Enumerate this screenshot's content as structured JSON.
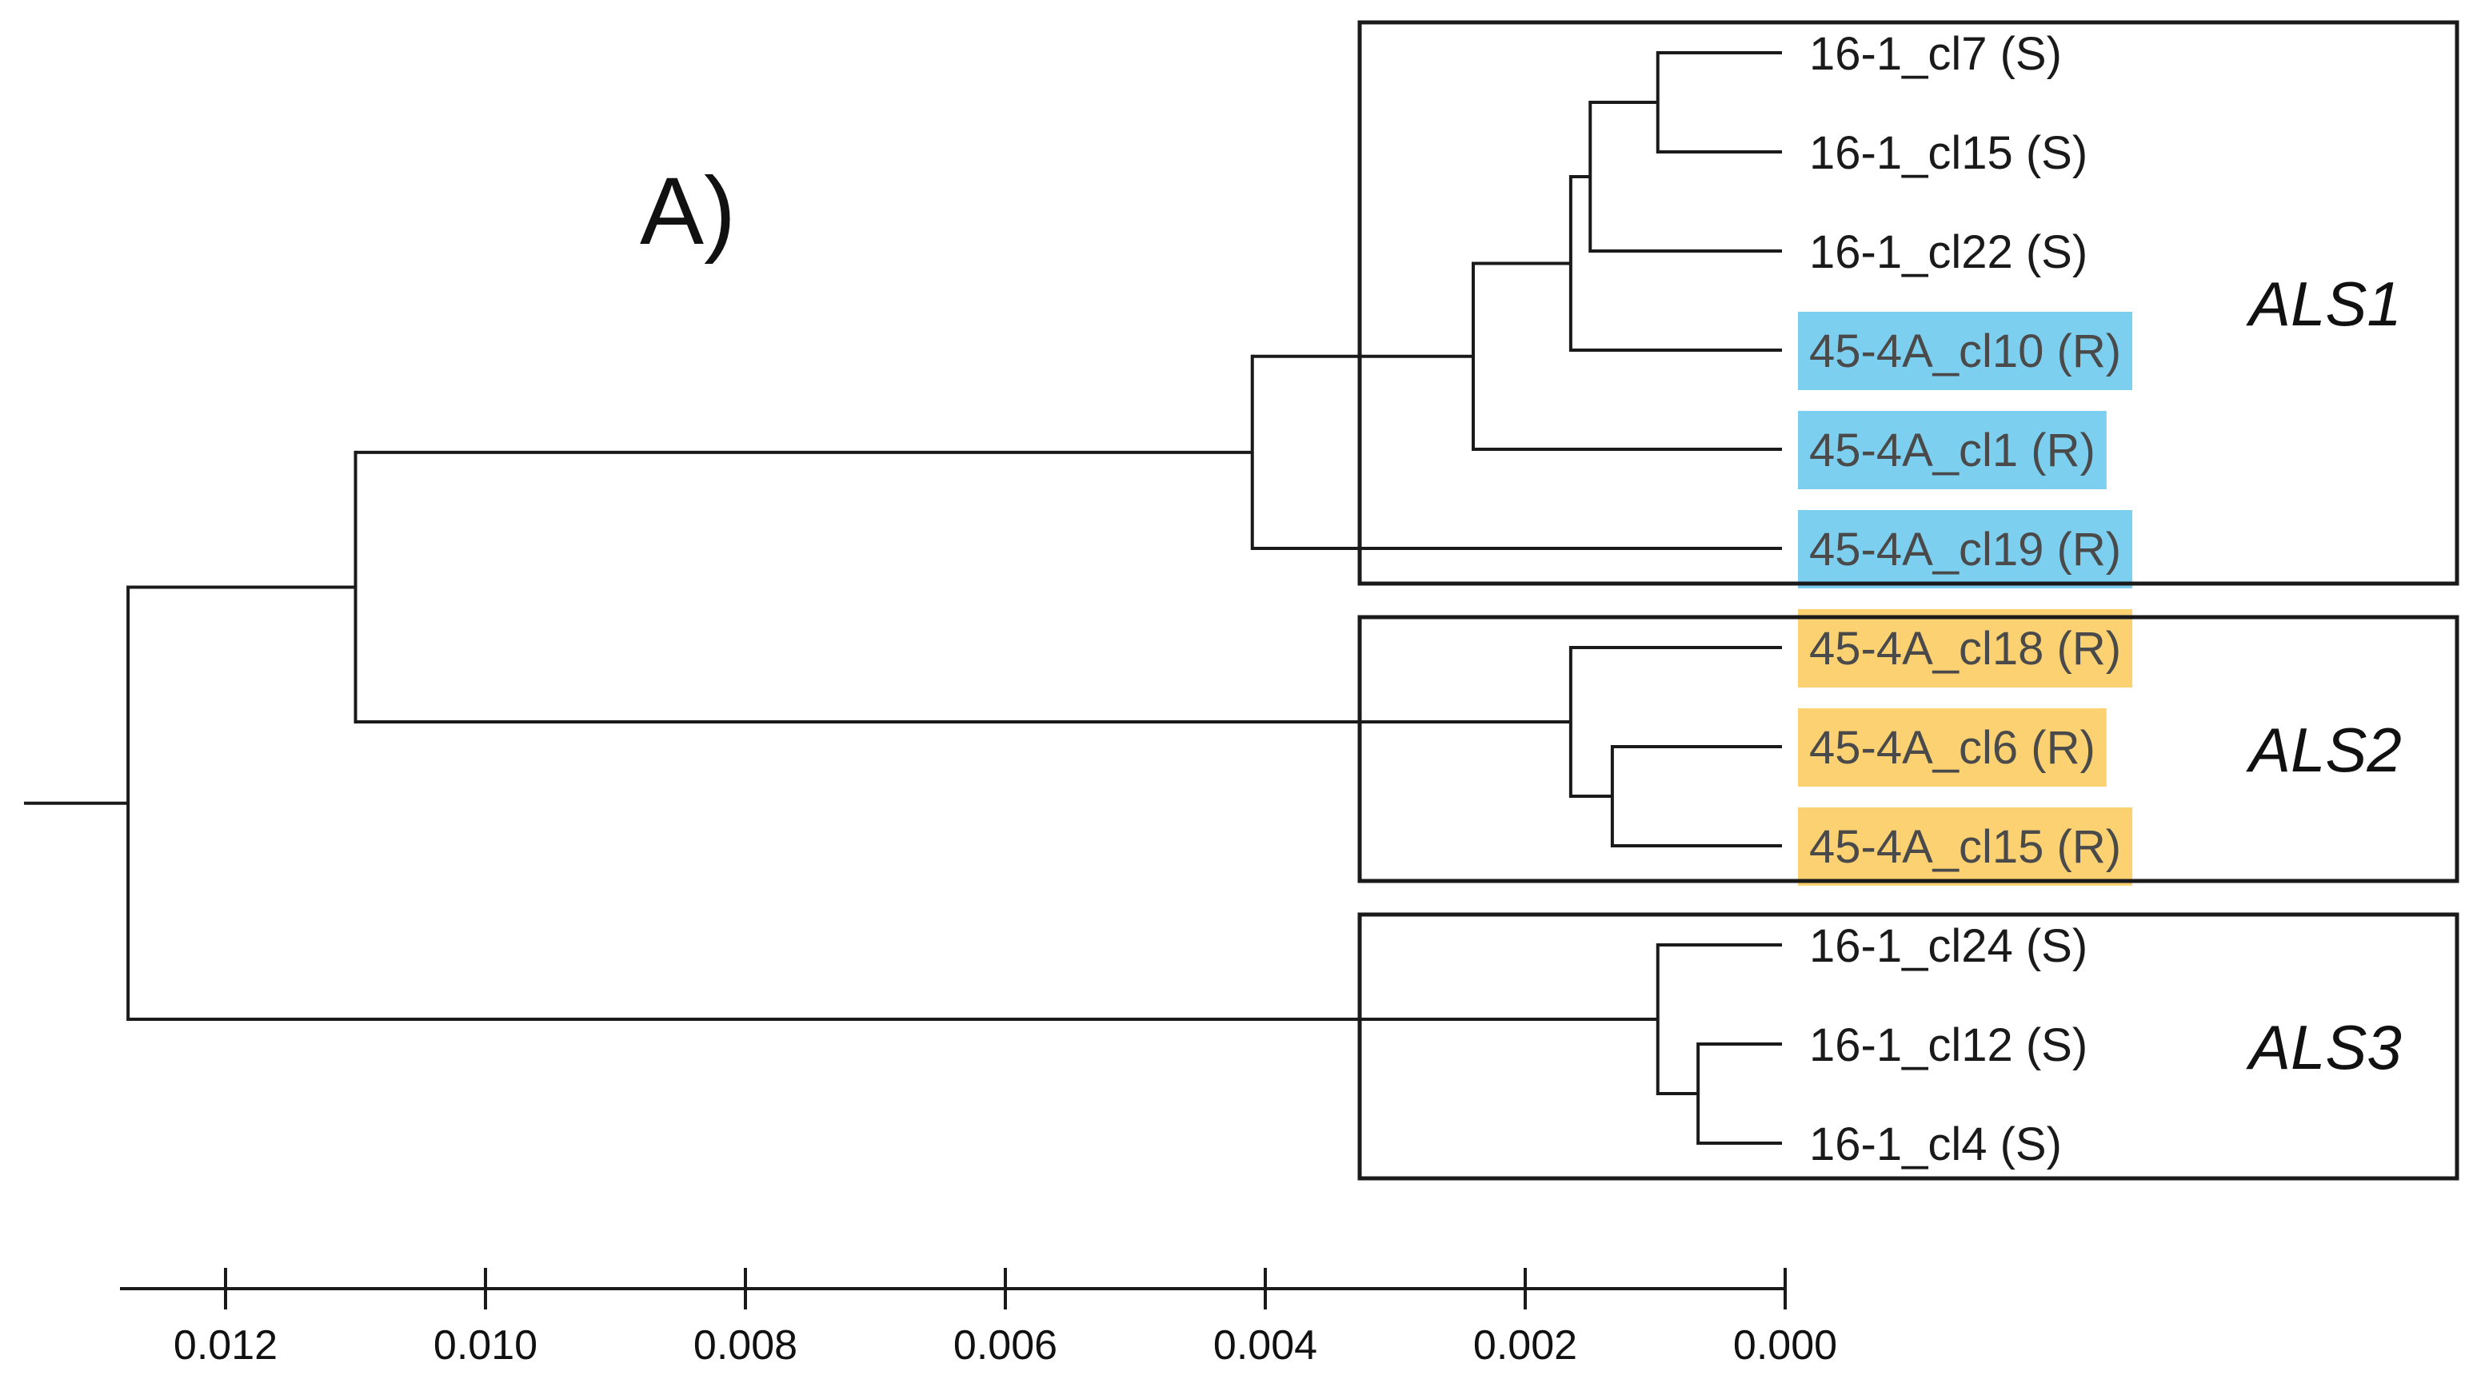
{
  "panel_label": "A)",
  "colors": {
    "line": "#1a1a1a",
    "resistant_als1": "#7dcff0",
    "resistant_als2": "#fbd172",
    "leaf_text": "#1a1a1a",
    "highlight_text": "#4a4a4a"
  },
  "clades": [
    {
      "name": "ALS1",
      "leaves": [
        0,
        1,
        2,
        3,
        4,
        5
      ]
    },
    {
      "name": "ALS2",
      "leaves": [
        6,
        7,
        8
      ]
    },
    {
      "name": "ALS3",
      "leaves": [
        9,
        10,
        11
      ]
    }
  ],
  "leaves": [
    {
      "label": "16-1_cl7 (S)",
      "status": "S",
      "highlight": "none"
    },
    {
      "label": "16-1_cl15 (S)",
      "status": "S",
      "highlight": "none"
    },
    {
      "label": "16-1_cl22 (S)",
      "status": "S",
      "highlight": "none"
    },
    {
      "label": "45-4A_cl10 (R)",
      "status": "R",
      "highlight": "resistant_als1"
    },
    {
      "label": "45-4A_cl1 (R)",
      "status": "R",
      "highlight": "resistant_als1"
    },
    {
      "label": "45-4A_cl19 (R)",
      "status": "R",
      "highlight": "resistant_als1"
    },
    {
      "label": "45-4A_cl18 (R)",
      "status": "R",
      "highlight": "resistant_als2"
    },
    {
      "label": "45-4A_cl6 (R)",
      "status": "R",
      "highlight": "resistant_als2"
    },
    {
      "label": "45-4A_cl15 (R)",
      "status": "R",
      "highlight": "resistant_als2"
    },
    {
      "label": "16-1_cl24 (S)",
      "status": "S",
      "highlight": "none"
    },
    {
      "label": "16-1_cl12 (S)",
      "status": "S",
      "highlight": "none"
    },
    {
      "label": "16-1_cl4 (S)",
      "status": "S",
      "highlight": "none"
    }
  ],
  "tree": {
    "d": 0.01275,
    "children": [
      {
        "d": 0.011,
        "children": [
          {
            "d": 0.0041,
            "children": [
              {
                "d": 0.0024,
                "children": [
                  {
                    "d": 0.00165,
                    "children": [
                      {
                        "d": 0.0015,
                        "children": [
                          {
                            "d": 0.00098,
                            "children": [
                              {
                                "leaf": 0
                              },
                              {
                                "leaf": 1
                              }
                            ]
                          },
                          {
                            "leaf": 2
                          }
                        ]
                      },
                      {
                        "leaf": 3
                      }
                    ]
                  },
                  {
                    "leaf": 4
                  }
                ]
              },
              {
                "leaf": 5
              }
            ]
          },
          {
            "d": 0.00165,
            "children": [
              {
                "leaf": 6
              },
              {
                "d": 0.00133,
                "children": [
                  {
                    "leaf": 7
                  },
                  {
                    "leaf": 8
                  }
                ]
              }
            ]
          }
        ]
      },
      {
        "d": 0.00098,
        "children": [
          {
            "leaf": 9
          },
          {
            "d": 0.00067,
            "children": [
              {
                "leaf": 10
              },
              {
                "leaf": 11
              }
            ]
          }
        ]
      }
    ]
  },
  "chart_data": {
    "type": "dendrogram",
    "axis": {
      "direction": "reversed",
      "range": [
        0.0128,
        0.0
      ],
      "ticks": [
        0.012,
        0.01,
        0.008,
        0.006,
        0.004,
        0.002,
        0.0
      ],
      "tick_labels": [
        "0.012",
        "0.010",
        "0.008",
        "0.006",
        "0.004",
        "0.002",
        "0.000"
      ]
    }
  }
}
